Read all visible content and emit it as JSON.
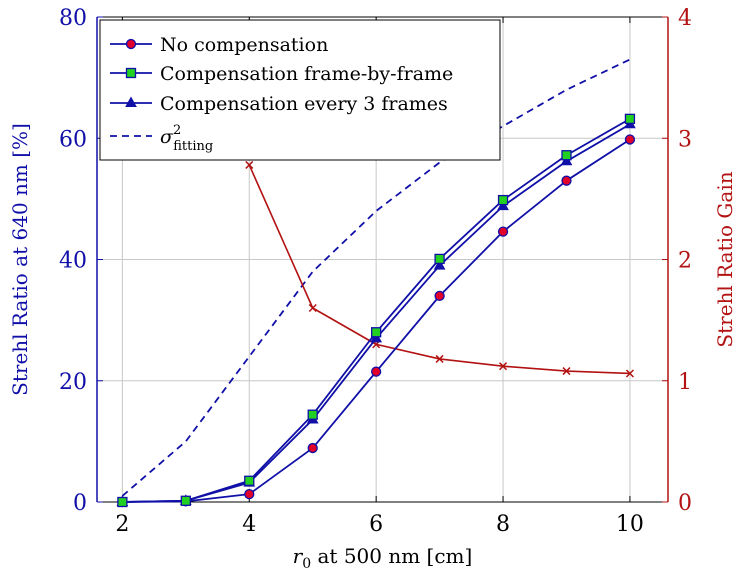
{
  "chart_data": {
    "type": "line",
    "xlabel": {
      "symbol": "r",
      "subscript": "0",
      "rest": " at 500 nm [cm]"
    },
    "ylabel": "Strehl Ratio at 640 nm [%]",
    "y2label": "Strehl Ratio Gain",
    "xlim": [
      1.6,
      10.6
    ],
    "ylim": [
      0,
      80
    ],
    "y2lim": [
      0,
      4
    ],
    "xticks": [
      2,
      4,
      6,
      8,
      10
    ],
    "yticks": [
      0,
      20,
      40,
      60,
      80
    ],
    "y2ticks": [
      0,
      1,
      2,
      3,
      4
    ],
    "grid": true,
    "legend_position": "top-left",
    "colors": {
      "primary": "#1010a8",
      "secondary": "#b31212",
      "marker_red": "#e0002a",
      "marker_green": "#22d022"
    },
    "series": [
      {
        "name": "No compensation",
        "axis": "left",
        "marker": "circle",
        "x": [
          2,
          3,
          4,
          5,
          6,
          7,
          8,
          9,
          10
        ],
        "y": [
          0,
          0.1,
          1.3,
          8.9,
          21.5,
          34.0,
          44.6,
          53.0,
          59.8
        ]
      },
      {
        "name": "Compensation frame-by-frame",
        "axis": "left",
        "marker": "square",
        "x": [
          2,
          3,
          4,
          5,
          6,
          7,
          8,
          9,
          10
        ],
        "y": [
          0,
          0.2,
          3.5,
          14.4,
          28.0,
          40.1,
          49.8,
          57.2,
          63.2
        ]
      },
      {
        "name": "Compensation every 3 frames",
        "axis": "left",
        "marker": "triangle",
        "x": [
          2,
          3,
          4,
          5,
          6,
          7,
          8,
          9,
          10
        ],
        "y": [
          0,
          0.2,
          3.2,
          13.6,
          27.0,
          39.0,
          48.8,
          56.2,
          62.3
        ]
      },
      {
        "name": {
          "sigma": "σ",
          "sup": "2",
          "sub": "fitting"
        },
        "axis": "left",
        "marker": "none",
        "dashed": true,
        "x": [
          2,
          3,
          4,
          5,
          6,
          7,
          8,
          9,
          10
        ],
        "y": [
          1,
          10,
          24,
          38,
          48,
          56,
          62,
          68,
          73
        ]
      },
      {
        "name": "",
        "axis": "right",
        "marker": "cross",
        "x": [
          4,
          5,
          6,
          7,
          8,
          9,
          10
        ],
        "y": [
          2.78,
          1.6,
          1.3,
          1.18,
          1.12,
          1.08,
          1.06
        ]
      }
    ]
  }
}
